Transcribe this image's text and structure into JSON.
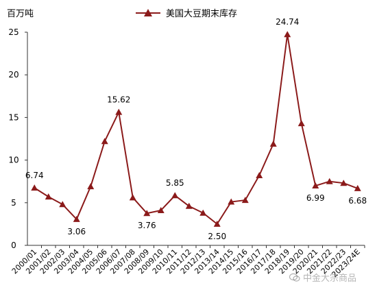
{
  "unit_label": "百万吨",
  "legend_label": "美国大豆期末库存",
  "watermark_text": "中金大宗商品",
  "watermark_icon": "wechat-icon",
  "colors": {
    "series": "#8B1A1A",
    "axis": "#333333",
    "text": "#000000"
  },
  "chart_data": {
    "type": "line",
    "title": "",
    "xlabel": "",
    "ylabel": "百万吨",
    "ylim": [
      0,
      25
    ],
    "yticks": [
      0,
      5,
      10,
      15,
      20,
      25
    ],
    "grid": false,
    "legend": "top-center",
    "categories": [
      "2000/01",
      "2001/02",
      "2002/03",
      "2003/04",
      "2004/05",
      "2005/06",
      "2006/07",
      "2007/08",
      "2008/09",
      "2009/10",
      "2010/11",
      "2011/12",
      "2012/13",
      "2013/14",
      "2014/15",
      "2015/16",
      "2016/17",
      "2017/18",
      "2018/19",
      "2019/20",
      "2020/21",
      "2021/22",
      "2022/23",
      "2023/24E"
    ],
    "series": [
      {
        "name": "美国大豆期末库存",
        "marker": "triangle",
        "values": [
          6.74,
          5.7,
          4.8,
          3.06,
          6.9,
          12.2,
          15.62,
          5.6,
          3.76,
          4.1,
          5.85,
          4.6,
          3.8,
          2.5,
          5.1,
          5.3,
          8.2,
          11.9,
          24.74,
          14.3,
          6.99,
          7.5,
          7.3,
          6.68
        ]
      }
    ],
    "data_labels": [
      {
        "index": 0,
        "text": "6.74",
        "pos": "above"
      },
      {
        "index": 3,
        "text": "3.06",
        "pos": "below"
      },
      {
        "index": 6,
        "text": "15.62",
        "pos": "above"
      },
      {
        "index": 8,
        "text": "3.76",
        "pos": "below"
      },
      {
        "index": 10,
        "text": "5.85",
        "pos": "above"
      },
      {
        "index": 13,
        "text": "2.50",
        "pos": "below"
      },
      {
        "index": 18,
        "text": "24.74",
        "pos": "above"
      },
      {
        "index": 20,
        "text": "6.99",
        "pos": "below"
      },
      {
        "index": 23,
        "text": "6.68",
        "pos": "below"
      }
    ]
  }
}
